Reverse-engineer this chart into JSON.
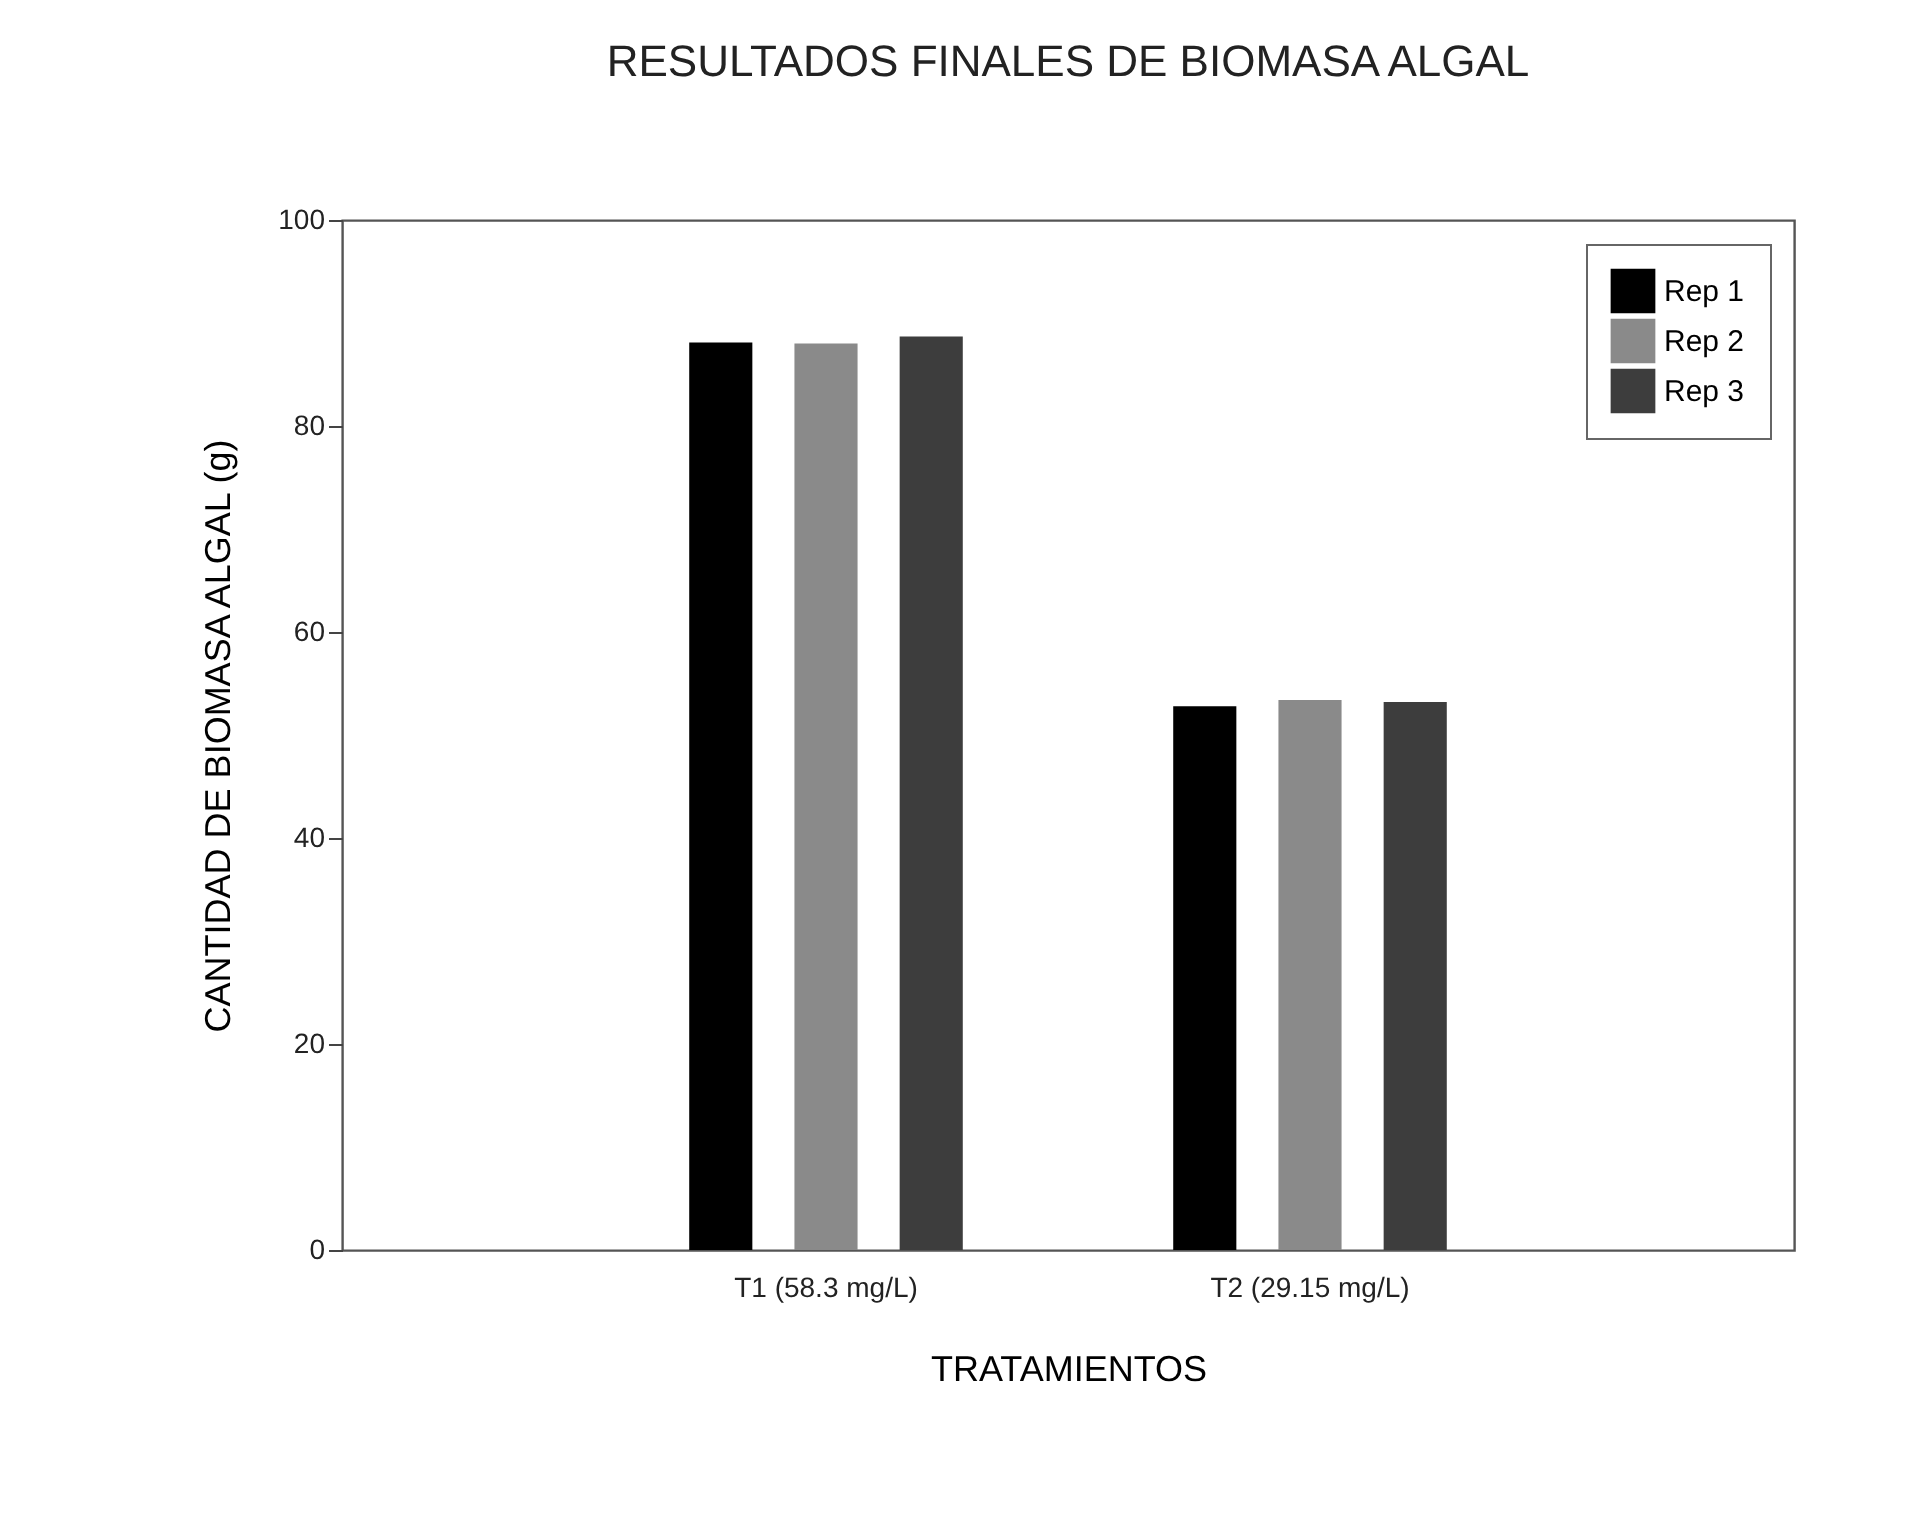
{
  "chart_data": {
    "type": "bar",
    "title": "RESULTADOS FINALES DE BIOMASA ALGAL",
    "xlabel": "TRATAMIENTOS",
    "ylabel": "CANTIDAD DE BIOMASA ALGAL (g)",
    "categories": [
      "T1 (58.3 mg/L)",
      "T2 (29.15 mg/L)"
    ],
    "series": [
      {
        "name": "Rep 1",
        "color": "#000000",
        "values": [
          88.1,
          52.8
        ]
      },
      {
        "name": "Rep 2",
        "color": "#8a8a8a",
        "values": [
          88.0,
          53.4
        ]
      },
      {
        "name": "Rep 3",
        "color": "#3d3d3d",
        "values": [
          88.7,
          53.2
        ]
      }
    ],
    "ylim": [
      0,
      100
    ],
    "yticks": [
      0,
      20,
      40,
      60,
      80,
      100
    ],
    "grid": false,
    "legend": "top right"
  }
}
